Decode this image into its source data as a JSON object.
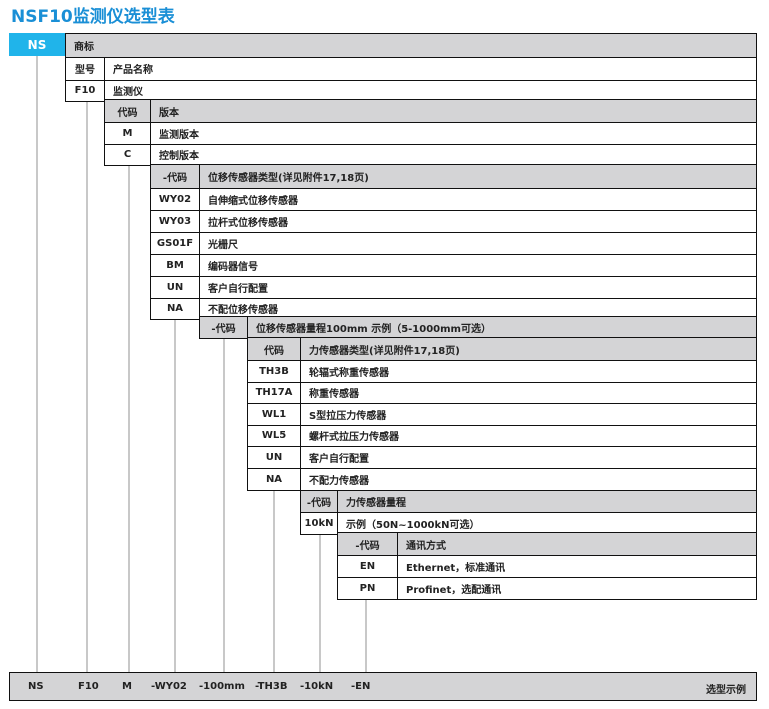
{
  "title": "NSF10监测仪选型表",
  "brand_code": "NS",
  "colors": {
    "accent": "#20b4ea",
    "title": "#1a8fd6",
    "header_gray": "#d4d4d6"
  },
  "blocks": [
    {
      "rows": [
        [
          "",
          "商标"
        ],
        [
          "型号",
          "产品名称"
        ],
        [
          "F10",
          "监测仪"
        ]
      ]
    },
    {
      "rows": [
        [
          "代码",
          "版本"
        ],
        [
          "M",
          "监测版本"
        ],
        [
          "C",
          "控制版本"
        ]
      ]
    },
    {
      "rows": [
        [
          "-代码",
          "位移传感器类型(详见附件17,18页)"
        ],
        [
          "WY02",
          "自伸缩式位移传感器"
        ],
        [
          "WY03",
          "拉杆式位移传感器"
        ],
        [
          "GS01F",
          "光栅尺"
        ],
        [
          "BM",
          "编码器信号"
        ],
        [
          "UN",
          "客户自行配置"
        ],
        [
          "NA",
          "不配位移传感器"
        ]
      ]
    },
    {
      "rows": [
        [
          "-代码",
          "位移传感器量程100mm  示例（5-1000mm可选）"
        ]
      ]
    },
    {
      "rows": [
        [
          "代码",
          "力传感器类型(详见附件17,18页)"
        ],
        [
          "TH3B",
          "轮辐式称重传感器"
        ],
        [
          "TH17A",
          "称重传感器"
        ],
        [
          "WL1",
          "S型拉压力传感器"
        ],
        [
          "WL5",
          "螺杆式拉压力传感器"
        ],
        [
          "UN",
          "客户自行配置"
        ],
        [
          "NA",
          "不配力传感器"
        ]
      ]
    },
    {
      "rows": [
        [
          "-代码",
          "力传感器量程"
        ],
        [
          "10kN",
          "示例（50N~1000kN可选）"
        ]
      ]
    },
    {
      "rows": [
        [
          "-代码",
          "通讯方式"
        ],
        [
          "EN",
          "Ethernet，标准通讯"
        ],
        [
          "PN",
          "Profinet，选配通讯"
        ]
      ]
    }
  ],
  "example": {
    "codes": [
      "NS",
      "F10",
      "M",
      "-WY02",
      "-100mm",
      "-TH3B",
      "-10kN",
      "-EN"
    ],
    "label": "选型示例"
  }
}
